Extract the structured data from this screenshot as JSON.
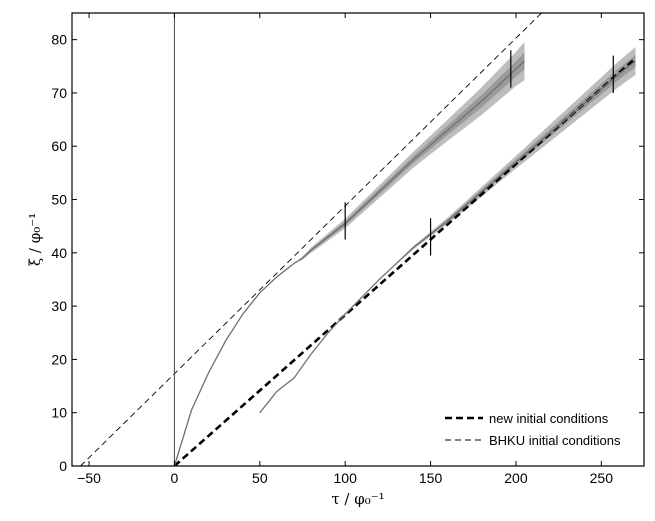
{
  "chart_data": {
    "type": "line",
    "xlabel": "τ / φ₀⁻¹",
    "ylabel": "ξ / φ₀⁻¹",
    "xlim": [
      -60,
      275
    ],
    "ylim": [
      0,
      85
    ],
    "xticks": [
      -50,
      0,
      50,
      100,
      150,
      200,
      250
    ],
    "yticks": [
      0,
      10,
      20,
      30,
      40,
      50,
      60,
      70,
      80
    ],
    "grid": false,
    "legend_position": "bottom-right",
    "legend": [
      {
        "label": "new initial conditions",
        "style": "dashed-thick"
      },
      {
        "label": "BHKU initial conditions",
        "style": "dashed-thin"
      }
    ],
    "reference_lines": [
      {
        "name": "new initial conditions",
        "points": [
          [
            0,
            0
          ],
          [
            270,
            76.5
          ]
        ]
      },
      {
        "name": "BHKU initial conditions",
        "points": [
          [
            -55,
            0
          ],
          [
            215,
            85
          ]
        ]
      },
      {
        "name": "tau-zero",
        "points": [
          [
            0,
            0
          ],
          [
            0,
            85
          ]
        ]
      }
    ],
    "series": [
      {
        "name": "",
        "x": [
          0,
          10,
          20,
          30,
          40,
          50,
          60,
          70,
          75,
          80,
          90,
          100,
          120,
          140,
          160,
          180,
          200,
          205
        ],
        "y": [
          0,
          10.5,
          17.5,
          23.5,
          28.5,
          32.5,
          35.5,
          38,
          39,
          40.5,
          43,
          45.5,
          51.5,
          57.5,
          63,
          68.5,
          74.5,
          76
        ],
        "band": [
          0,
          0,
          0,
          0,
          0,
          0,
          0,
          0,
          0.3,
          0.5,
          0.7,
          0.9,
          1.2,
          1.5,
          2.0,
          2.6,
          3.2,
          3.6
        ]
      },
      {
        "name": "",
        "x": [
          50,
          60,
          70,
          80,
          90,
          100,
          120,
          140,
          160,
          180,
          200,
          220,
          240,
          260,
          270
        ],
        "y": [
          10,
          14,
          16.5,
          21,
          25,
          28.5,
          35,
          41,
          46,
          51.5,
          57,
          62.5,
          68,
          73.5,
          76
        ],
        "band": [
          0,
          0,
          0,
          0,
          0,
          0,
          0,
          0.3,
          0.6,
          0.9,
          1.2,
          1.6,
          2.0,
          2.4,
          2.6
        ]
      }
    ],
    "markers": [
      {
        "x": 100,
        "y": 46,
        "half_height": 3.5
      },
      {
        "x": 197,
        "y": 74.5,
        "half_height": 3.5
      },
      {
        "x": 150,
        "y": 43,
        "half_height": 3.5
      },
      {
        "x": 257,
        "y": 73.5,
        "half_height": 3.5
      }
    ]
  }
}
